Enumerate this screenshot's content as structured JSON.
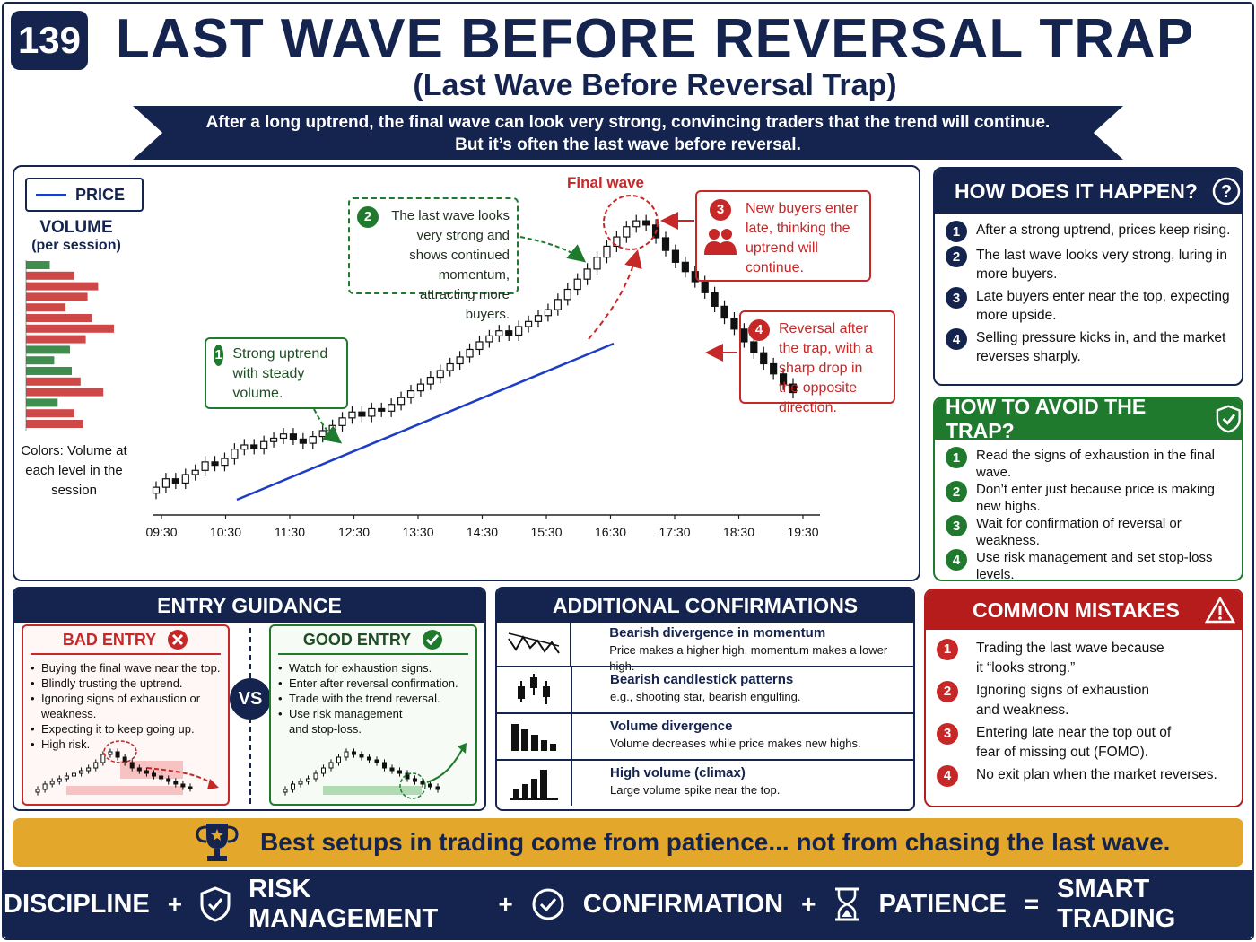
{
  "header": {
    "badge": "139",
    "title": "LAST WAVE BEFORE REVERSAL TRAP",
    "subtitle": "(Last Wave Before Reversal Trap)",
    "banner_line1": "After a long uptrend, the final wave can look very strong, convincing traders that the trend will continue.",
    "banner_line2": "But it’s often the last wave before reversal."
  },
  "chart": {
    "price_legend": "PRICE",
    "volume_title": "VOLUME",
    "volume_sub": "(per session)",
    "colors_note": "Colors: Volume at each level in the session",
    "final_wave_label": "Final wave",
    "callouts": [
      {
        "num": "1",
        "text": "Strong uptrend with steady volume."
      },
      {
        "num": "2",
        "text": "The last wave looks very strong and shows continued momentum, attracting more buyers."
      },
      {
        "num": "3",
        "text": "New buyers enter late, thinking the uptrend will continue."
      },
      {
        "num": "4",
        "text": "Reversal after the trap, with a sharp drop in the opposite direction."
      }
    ],
    "colors": {
      "up": "#1f7a2e",
      "down": "#c62828",
      "trend": "#1d3cc7",
      "navy": "#14244e"
    }
  },
  "chart_data": {
    "type": "candlestick",
    "x_ticks": [
      "09:30",
      "10:30",
      "11:30",
      "12:30",
      "13:30",
      "14:30",
      "15:30",
      "16:30",
      "17:30",
      "18:30",
      "19:30"
    ],
    "closes": [
      100,
      101,
      100.5,
      101.5,
      102,
      103,
      102.6,
      103.4,
      104.5,
      105,
      104.6,
      105.4,
      105.8,
      106.3,
      105.7,
      105.2,
      106,
      106.7,
      107.3,
      108.2,
      108.9,
      108.4,
      109.3,
      109,
      109.8,
      110.6,
      111.4,
      112.2,
      113,
      113.8,
      114.6,
      115.4,
      116.3,
      117.2,
      117.9,
      118.5,
      118,
      119,
      119.6,
      120.3,
      121,
      122.2,
      123.4,
      124.6,
      125.8,
      127.2,
      128.5,
      129.6,
      130.8,
      131.5,
      131,
      129.5,
      128,
      126.6,
      125.5,
      124.3,
      123,
      121.4,
      120,
      118.7,
      117.2,
      115.9,
      114.6,
      113.4,
      112.2,
      111.2
    ],
    "volume_bars": [
      {
        "color": "green",
        "value": 0.27
      },
      {
        "color": "red",
        "value": 0.55
      },
      {
        "color": "red",
        "value": 0.82
      },
      {
        "color": "red",
        "value": 0.7
      },
      {
        "color": "red",
        "value": 0.45
      },
      {
        "color": "red",
        "value": 0.75
      },
      {
        "color": "red",
        "value": 1.0
      },
      {
        "color": "red",
        "value": 0.68
      },
      {
        "color": "green",
        "value": 0.5
      },
      {
        "color": "green",
        "value": 0.32
      },
      {
        "color": "green",
        "value": 0.52
      },
      {
        "color": "red",
        "value": 0.62
      },
      {
        "color": "red",
        "value": 0.88
      },
      {
        "color": "green",
        "value": 0.36
      },
      {
        "color": "red",
        "value": 0.55
      },
      {
        "color": "red",
        "value": 0.65
      }
    ]
  },
  "how": {
    "title": "HOW DOES IT HAPPEN?",
    "items": [
      "After a strong uptrend, prices keep rising.",
      "The last wave looks very strong, luring in more buyers.",
      "Late buyers enter near the top, expecting more upside.",
      "Selling pressure kicks in, and the market reverses sharply."
    ]
  },
  "avoid": {
    "title": "HOW TO AVOID THE TRAP?",
    "items": [
      "Read the signs of exhaustion in the final wave.",
      "Don’t enter just because price is making new highs.",
      "Wait for confirmation of reversal or weakness.",
      "Use risk management and set stop-loss levels."
    ]
  },
  "mistakes": {
    "title": "COMMON MISTAKES",
    "items": [
      "Trading the last wave because it “looks strong.”",
      "Ignoring signs of exhaustion and weakness.",
      "Entering late near the top out of fear of missing out (FOMO).",
      "No exit plan when the market reverses."
    ]
  },
  "entry": {
    "title": "ENTRY GUIDANCE",
    "bad_title": "BAD ENTRY",
    "bad_items": [
      "Buying the final wave near the top.",
      "Blindly trusting the uptrend.",
      "Ignoring signs of exhaustion or weakness.",
      "Expecting it to keep going up.",
      "High risk."
    ],
    "good_title": "GOOD ENTRY",
    "good_items": [
      "Watch for exhaustion signs.",
      "Enter after reversal confirmation.",
      "Trade with the trend reversal.",
      "Use risk management and stop-loss."
    ],
    "vs": "VS"
  },
  "confirm": {
    "title": "ADDITIONAL CONFIRMATIONS",
    "rows": [
      {
        "icon": "divergence-icon",
        "title": "Bearish divergence in momentum",
        "desc": "Price makes a higher high, momentum makes a lower high."
      },
      {
        "icon": "candlestick-icon",
        "title": "Bearish candlestick patterns",
        "desc": "e.g., shooting star, bearish engulfing."
      },
      {
        "icon": "volume-divergence-icon",
        "title": "Volume divergence",
        "desc": "Volume decreases while price makes new highs."
      },
      {
        "icon": "volume-climax-icon",
        "title": "High volume (climax)",
        "desc": "Large volume spike near the top."
      }
    ]
  },
  "quote": "Best setups in trading come from patience... not from chasing the last wave.",
  "footer": {
    "discipline": "DISCIPLINE",
    "risk": "RISK MANAGEMENT",
    "confirmation": "CONFIRMATION",
    "patience": "PATIENCE",
    "plus": "+",
    "equals": "=",
    "result": "SMART TRADING"
  }
}
